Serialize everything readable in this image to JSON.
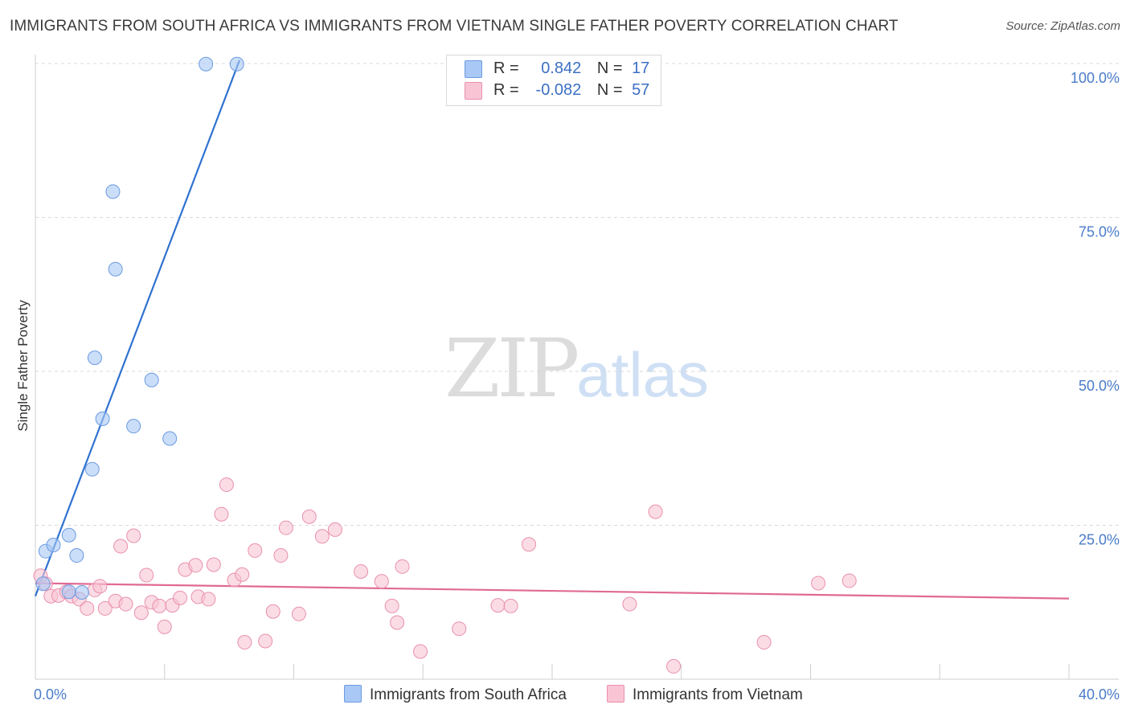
{
  "title": "IMMIGRANTS FROM SOUTH AFRICA VS IMMIGRANTS FROM VIETNAM SINGLE FATHER POVERTY CORRELATION CHART",
  "source": "Source: ZipAtlas.com",
  "watermark": {
    "zip": "ZIP",
    "atlas": "atlas"
  },
  "legend": {
    "r_label": "R =",
    "n_label": "N =",
    "rows": [
      {
        "r": "0.842",
        "n": "17",
        "color": "#a9c8f5",
        "border": "#6b9be0"
      },
      {
        "r": "-0.082",
        "n": "57",
        "color": "#f9c5d4",
        "border": "#e990ad"
      }
    ]
  },
  "bottom_legend": [
    {
      "label": "Immigrants from South Africa",
      "color": "#a9c8f5",
      "border": "#6b9be0"
    },
    {
      "label": "Immigrants from Vietnam",
      "color": "#f9c5d4",
      "border": "#e990ad"
    }
  ],
  "chart_data": {
    "type": "scatter",
    "title": "IMMIGRANTS FROM SOUTH AFRICA VS IMMIGRANTS FROM VIETNAM SINGLE FATHER POVERTY CORRELATION CHART",
    "xlabel": "",
    "ylabel": "Single Father Poverty",
    "xlim": [
      0,
      40
    ],
    "ylim": [
      0,
      100
    ],
    "x_tick_labels": [
      {
        "value": 0,
        "label": "0.0%"
      },
      {
        "value": 40,
        "label": "40.0%"
      }
    ],
    "y_tick_labels": [
      {
        "value": 25,
        "label": "25.0%"
      },
      {
        "value": 50,
        "label": "50.0%"
      },
      {
        "value": 75,
        "label": "75.0%"
      },
      {
        "value": 100,
        "label": "100.0%"
      }
    ],
    "grid": true,
    "series": [
      {
        "name": "Immigrants from South Africa",
        "color": "#6b9be0",
        "fill": "#a9c8f5",
        "trendline": {
          "x": [
            0.0,
            7.9
          ],
          "y": [
            13.5,
            100.5
          ],
          "color": "#2f72d0"
        },
        "points": [
          {
            "x": 0.3,
            "y": 15.5
          },
          {
            "x": 0.4,
            "y": 20.8
          },
          {
            "x": 0.7,
            "y": 21.8
          },
          {
            "x": 1.3,
            "y": 14.2
          },
          {
            "x": 1.3,
            "y": 23.4
          },
          {
            "x": 1.6,
            "y": 20.1
          },
          {
            "x": 1.8,
            "y": 14.1
          },
          {
            "x": 2.2,
            "y": 34.1
          },
          {
            "x": 2.3,
            "y": 52.2
          },
          {
            "x": 2.6,
            "y": 42.3
          },
          {
            "x": 3.0,
            "y": 79.2
          },
          {
            "x": 3.1,
            "y": 66.6
          },
          {
            "x": 3.8,
            "y": 41.1
          },
          {
            "x": 4.5,
            "y": 48.6
          },
          {
            "x": 5.2,
            "y": 39.1
          },
          {
            "x": 6.6,
            "y": 99.9
          },
          {
            "x": 7.8,
            "y": 99.9
          }
        ]
      },
      {
        "name": "Immigrants from Vietnam",
        "color": "#e990ad",
        "fill": "#f9c5d4",
        "trendline": {
          "x": [
            0.0,
            40.0
          ],
          "y": [
            15.6,
            13.1
          ],
          "color": "#e06a94"
        },
        "points": [
          {
            "x": 0.2,
            "y": 16.8
          },
          {
            "x": 0.4,
            "y": 15.5
          },
          {
            "x": 0.6,
            "y": 13.5
          },
          {
            "x": 0.9,
            "y": 13.6
          },
          {
            "x": 1.2,
            "y": 14.2
          },
          {
            "x": 1.4,
            "y": 13.5
          },
          {
            "x": 1.7,
            "y": 13.0
          },
          {
            "x": 2.0,
            "y": 11.5
          },
          {
            "x": 2.3,
            "y": 14.5
          },
          {
            "x": 2.5,
            "y": 15.1
          },
          {
            "x": 2.7,
            "y": 11.5
          },
          {
            "x": 3.1,
            "y": 12.7
          },
          {
            "x": 3.3,
            "y": 21.6
          },
          {
            "x": 3.5,
            "y": 12.2
          },
          {
            "x": 3.8,
            "y": 23.3
          },
          {
            "x": 4.1,
            "y": 10.8
          },
          {
            "x": 4.3,
            "y": 16.9
          },
          {
            "x": 4.5,
            "y": 12.5
          },
          {
            "x": 4.8,
            "y": 11.9
          },
          {
            "x": 5.0,
            "y": 8.5
          },
          {
            "x": 5.3,
            "y": 12.0
          },
          {
            "x": 5.6,
            "y": 13.2
          },
          {
            "x": 5.8,
            "y": 17.8
          },
          {
            "x": 6.2,
            "y": 18.5
          },
          {
            "x": 6.3,
            "y": 13.4
          },
          {
            "x": 6.7,
            "y": 13.0
          },
          {
            "x": 6.9,
            "y": 18.6
          },
          {
            "x": 7.2,
            "y": 26.8
          },
          {
            "x": 7.4,
            "y": 31.6
          },
          {
            "x": 7.7,
            "y": 16.1
          },
          {
            "x": 8.0,
            "y": 17.0
          },
          {
            "x": 8.1,
            "y": 6.0
          },
          {
            "x": 8.5,
            "y": 20.9
          },
          {
            "x": 8.9,
            "y": 6.2
          },
          {
            "x": 9.2,
            "y": 11.0
          },
          {
            "x": 9.5,
            "y": 20.1
          },
          {
            "x": 9.7,
            "y": 24.6
          },
          {
            "x": 10.2,
            "y": 10.6
          },
          {
            "x": 10.6,
            "y": 26.4
          },
          {
            "x": 11.1,
            "y": 23.2
          },
          {
            "x": 11.6,
            "y": 24.3
          },
          {
            "x": 12.6,
            "y": 17.5
          },
          {
            "x": 13.4,
            "y": 15.9
          },
          {
            "x": 13.8,
            "y": 11.9
          },
          {
            "x": 14.0,
            "y": 9.2
          },
          {
            "x": 14.2,
            "y": 18.3
          },
          {
            "x": 14.9,
            "y": 4.5
          },
          {
            "x": 16.4,
            "y": 8.2
          },
          {
            "x": 17.9,
            "y": 12.0
          },
          {
            "x": 18.4,
            "y": 11.9
          },
          {
            "x": 19.1,
            "y": 21.9
          },
          {
            "x": 23.0,
            "y": 12.2
          },
          {
            "x": 24.0,
            "y": 27.2
          },
          {
            "x": 24.7,
            "y": 2.1
          },
          {
            "x": 28.2,
            "y": 6.0
          },
          {
            "x": 30.3,
            "y": 15.6
          },
          {
            "x": 31.5,
            "y": 16.0
          }
        ]
      }
    ]
  }
}
